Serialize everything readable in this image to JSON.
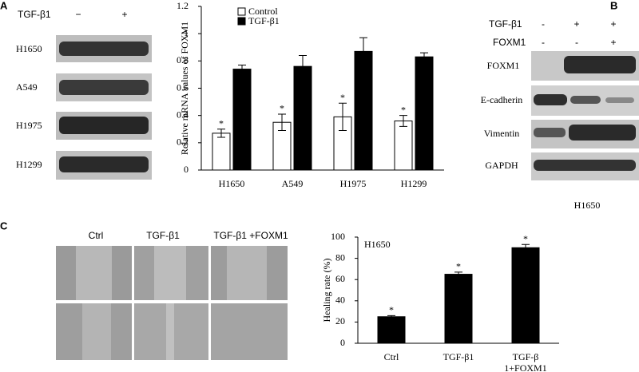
{
  "panel_labels": [
    "A",
    "B",
    "C"
  ],
  "blot_a": {
    "treatment": "TGF-β1",
    "signs": [
      "−",
      "+"
    ],
    "rows": [
      "H1650",
      "A549",
      "H1975",
      "H1299"
    ]
  },
  "blot_b": {
    "conditions": [
      {
        "name": "TGF-β1",
        "signs": [
          "-",
          "+",
          "+"
        ]
      },
      {
        "name": "FOXM1",
        "signs": [
          "-",
          "-",
          "+"
        ]
      }
    ],
    "bands": [
      "FOXM1",
      "E-cadherin",
      "Vimentin",
      "GAPDH"
    ],
    "cell_line": "H1650"
  },
  "wound": {
    "columns": [
      "Ctrl",
      "TGF-β1",
      "TGF-β1 +FOXM1"
    ]
  },
  "chart_data": [
    {
      "type": "bar",
      "y_label": "Relative mRNA values of FOXM1",
      "categories": [
        "H1650",
        "A549",
        "H1975",
        "H1299"
      ],
      "series": [
        {
          "name": "Control",
          "color": "#ffffff",
          "values": [
            0.27,
            0.35,
            0.39,
            0.36
          ],
          "errors": [
            0.03,
            0.06,
            0.1,
            0.04
          ],
          "annotations": [
            "*",
            "*",
            "*",
            "*"
          ]
        },
        {
          "name": "TGF-β1",
          "color": "#000000",
          "values": [
            0.74,
            0.76,
            0.87,
            0.83
          ],
          "errors": [
            0.03,
            0.08,
            0.1,
            0.03
          ]
        }
      ],
      "ylim": [
        0,
        1.2
      ],
      "yticks": [
        0,
        0.2,
        0.4,
        0.6,
        0.8,
        1,
        1.2
      ],
      "legend": "top-left"
    },
    {
      "type": "bar",
      "title": "H1650",
      "y_label": "Healing rate (%)",
      "categories": [
        "Ctrl",
        "TGF-β1",
        "TGF-β\n1+FOXM1"
      ],
      "values": [
        25,
        65,
        90
      ],
      "errors": [
        1,
        2,
        3
      ],
      "annotations": [
        "*",
        "*",
        "*"
      ],
      "color": "#000000",
      "ylim": [
        0,
        100
      ],
      "yticks": [
        0,
        20,
        40,
        60,
        80,
        100
      ]
    }
  ]
}
